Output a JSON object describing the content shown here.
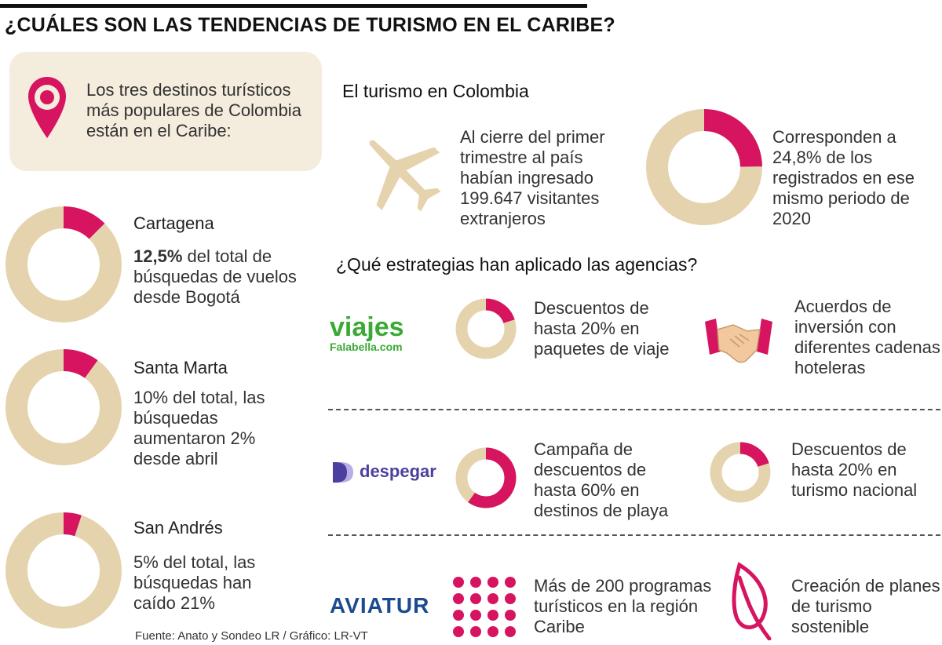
{
  "title": "¿CUÁLES SON LAS TENDENCIAS DE TURISMO EN EL CARIBE?",
  "callout": {
    "text": "Los tres destinos turísticos más populares de Colombia están en el Caribe:",
    "icon": "location-pin-icon"
  },
  "colors": {
    "accent": "#d6145f",
    "track": "#e5d3ae",
    "callout_bg": "#f4ecdd"
  },
  "destinations": [
    {
      "name": "Cartagena",
      "pct_label": "12,5%",
      "text": " del total de búsquedas de vuelos desde Bogotá",
      "share": 0.125
    },
    {
      "name": "Santa Marta",
      "text": "10% del total, las búsquedas aumentaron 2% desde abril",
      "share": 0.1
    },
    {
      "name": "San Andrés",
      "text": "5% del total, las búsquedas han caído 21%",
      "share": 0.05
    }
  ],
  "colombia": {
    "heading": "El turismo en Colombia",
    "visitors_text": "Al cierre del primer trimestre al país habían ingresado 199.647 visitantes extranjeros",
    "share_text": "Corresponden a 24,8% de los registrados en ese mismo periodo de 2020",
    "share": 0.248,
    "icon": "airplane-icon"
  },
  "strategies": {
    "heading": "¿Qué estrategias han aplicado las agencias?",
    "agencies": [
      {
        "brand": "viajes",
        "brand_sub": "Falabella.com",
        "left_text": "Descuentos de hasta 20% en paquetes de viaje",
        "left_share": 0.2,
        "right_text": "Acuerdos de inversión con diferentes cadenas hoteleras",
        "right_icon": "handshake-icon"
      },
      {
        "brand": "despegar",
        "left_text": "Campaña de descuentos de hasta 60% en destinos de playa",
        "left_share": 0.6,
        "right_text": "Descuentos de hasta 20% en turismo nacional",
        "right_share": 0.2
      },
      {
        "brand": "AVIATUR",
        "left_text": "Más de 200 programas turísticos en la región Caribe",
        "left_icon": "dot-grid-icon",
        "right_text": "Creación de planes de turismo sostenible",
        "right_icon": "leaf-icon"
      }
    ]
  },
  "source": "Fuente: Anato y Sondeo LR / Gráfico: LR-VT"
}
